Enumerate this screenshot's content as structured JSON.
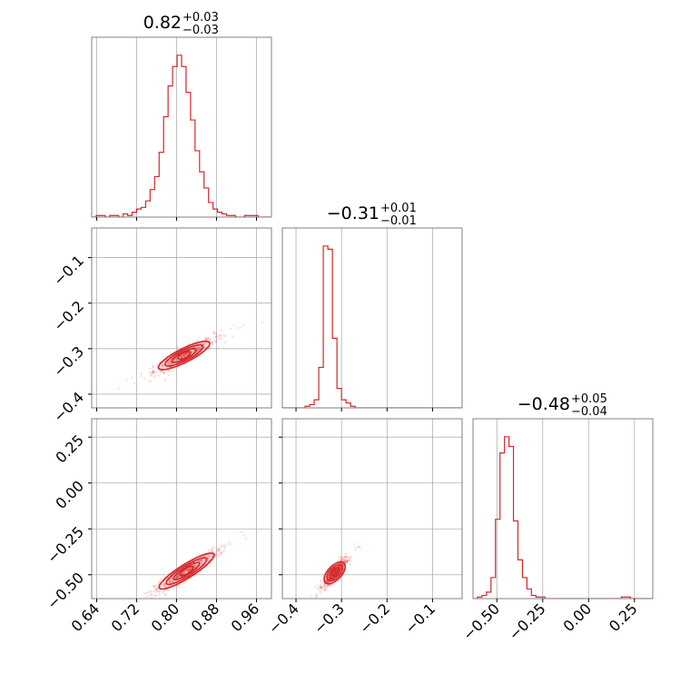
{
  "colors": {
    "accent": "#d62728",
    "grid": "#b0b0b0",
    "frame": "#808080"
  },
  "titles": [
    {
      "main": "0.82",
      "sup": "+0.03",
      "sub": "−0.03"
    },
    {
      "main": "−0.31",
      "sup": "+0.01",
      "sub": "−0.01"
    },
    {
      "main": "−0.48",
      "sup": "+0.05",
      "sub": "−0.04"
    }
  ],
  "chart_data": {
    "type": "corner",
    "parameters": 3,
    "grid": true,
    "axes": [
      {
        "range": [
          0.63,
          0.99
        ],
        "ticks": [
          0.64,
          0.72,
          0.8,
          0.88,
          0.96
        ],
        "tick_labels": [
          "0.64",
          "0.72",
          "0.80",
          "0.88",
          "0.96"
        ]
      },
      {
        "range": [
          -0.43,
          -0.035
        ],
        "ticks": [
          -0.4,
          -0.3,
          -0.2,
          -0.1
        ],
        "tick_labels": [
          "−0.4",
          "−0.3",
          "−0.2",
          "−0.1"
        ]
      },
      {
        "range": [
          -0.63,
          0.35
        ],
        "ticks": [
          -0.5,
          -0.25,
          0.0,
          0.25
        ],
        "tick_labels": [
          "−0.50",
          "−0.25",
          "0.00",
          "0.25"
        ]
      }
    ],
    "marginals": [
      {
        "param": 0,
        "bin_edges_start": 0.63,
        "bin_width": 0.009,
        "counts": [
          0,
          0.01,
          0.01,
          0,
          0.01,
          0.01,
          0,
          0.02,
          0.01,
          0.03,
          0.05,
          0.06,
          0.1,
          0.17,
          0.25,
          0.4,
          0.62,
          0.81,
          0.93,
          1.0,
          0.93,
          0.77,
          0.6,
          0.41,
          0.28,
          0.18,
          0.09,
          0.05,
          0.03,
          0.02,
          0.01,
          0.01,
          0,
          0,
          0.01,
          0.01,
          0.01,
          0,
          0,
          0
        ]
      },
      {
        "param": 1,
        "bin_edges_start": -0.43,
        "bin_width": 0.01,
        "counts": [
          0,
          0,
          0,
          0,
          0,
          0.01,
          0.02,
          0.05,
          0.25,
          1.0,
          0.98,
          0.43,
          0.12,
          0.05,
          0.03,
          0.01,
          0,
          0,
          0,
          0,
          0,
          0,
          0,
          0,
          0,
          0,
          0,
          0,
          0,
          0,
          0,
          0,
          0,
          0,
          0,
          0,
          0,
          0,
          0,
          0
        ]
      },
      {
        "param": 2,
        "bin_edges_start": -0.63,
        "bin_width": 0.0245,
        "counts": [
          0,
          0.01,
          0.02,
          0.04,
          0.13,
          0.49,
          0.9,
          1.0,
          0.94,
          0.48,
          0.24,
          0.13,
          0.06,
          0.02,
          0.01,
          0.01,
          0,
          0,
          0,
          0,
          0,
          0,
          0,
          0,
          0,
          0,
          0,
          0,
          0,
          0,
          0,
          0,
          0,
          0.01,
          0.01,
          0,
          0,
          0,
          0,
          0
        ]
      }
    ],
    "joint": [
      {
        "x_param": 0,
        "y_param": 1,
        "center": [
          0.815,
          -0.315
        ],
        "spread_x": 0.03,
        "slope": 0.55,
        "spread_y": 0.008
      },
      {
        "x_param": 0,
        "y_param": 2,
        "center": [
          0.82,
          -0.48
        ],
        "spread_x": 0.032,
        "slope": 1.7,
        "spread_y": 0.02
      },
      {
        "x_param": 1,
        "y_param": 2,
        "center": [
          -0.315,
          -0.49
        ],
        "spread_x": 0.012,
        "slope": 2.6,
        "spread_y": 0.02
      }
    ]
  }
}
